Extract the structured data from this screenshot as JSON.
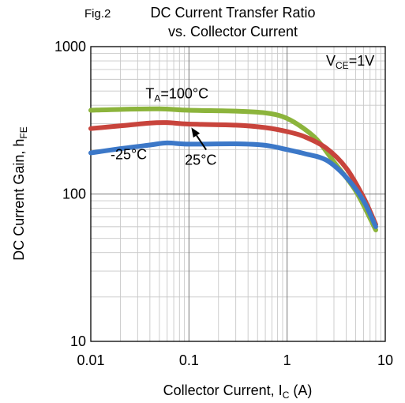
{
  "figure_label": "Fig.2",
  "chart_data": {
    "type": "line",
    "title_line1": "DC Current Transfer Ratio",
    "title_line2": "vs. Collector Current",
    "xlabel": {
      "main": "Collector Current, I",
      "sub": "C",
      "unit": " (A)"
    },
    "ylabel": {
      "main": "DC Current Gain, h",
      "sub": "FE"
    },
    "x_scale": "log",
    "y_scale": "log",
    "xlim": [
      0.01,
      10
    ],
    "ylim": [
      10,
      1000
    ],
    "grid": true,
    "x_ticks": [
      {
        "value": 0.01,
        "label": "0.01"
      },
      {
        "value": 0.1,
        "label": "0.1"
      },
      {
        "value": 1,
        "label": "1"
      },
      {
        "value": 10,
        "label": "10"
      }
    ],
    "y_ticks": [
      {
        "value": 10,
        "label": "10"
      },
      {
        "value": 100,
        "label": "100"
      },
      {
        "value": 1000,
        "label": "1000"
      }
    ],
    "condition": {
      "main": "V",
      "sub": "CE",
      "rest": "=1V"
    },
    "series": [
      {
        "label": "T_A=100°C",
        "color": "#8cb43c",
        "points": [
          [
            0.01,
            370
          ],
          [
            0.02,
            375
          ],
          [
            0.05,
            378
          ],
          [
            0.1,
            370
          ],
          [
            0.3,
            365
          ],
          [
            0.6,
            355
          ],
          [
            0.9,
            335
          ],
          [
            1.3,
            295
          ],
          [
            2.0,
            235
          ],
          [
            3.0,
            165
          ],
          [
            5.0,
            105
          ],
          [
            8.0,
            57
          ]
        ]
      },
      {
        "label": "25°C",
        "color": "#c8443c",
        "points": [
          [
            0.01,
            278
          ],
          [
            0.02,
            290
          ],
          [
            0.04,
            303
          ],
          [
            0.06,
            305
          ],
          [
            0.1,
            298
          ],
          [
            0.3,
            293
          ],
          [
            0.6,
            282
          ],
          [
            1.0,
            265
          ],
          [
            1.5,
            245
          ],
          [
            2.5,
            205
          ],
          [
            4.0,
            150
          ],
          [
            6.0,
            95
          ],
          [
            8.0,
            62
          ]
        ]
      },
      {
        "label": "-25°C",
        "color": "#3c78c8",
        "points": [
          [
            0.01,
            190
          ],
          [
            0.02,
            203
          ],
          [
            0.04,
            215
          ],
          [
            0.06,
            222
          ],
          [
            0.1,
            218
          ],
          [
            0.3,
            219
          ],
          [
            0.6,
            214
          ],
          [
            1.0,
            200
          ],
          [
            1.5,
            188
          ],
          [
            2.5,
            170
          ],
          [
            4.0,
            130
          ],
          [
            6.0,
            90
          ],
          [
            8.0,
            60
          ]
        ]
      }
    ],
    "annotations": [
      {
        "series": "T_A=100°C",
        "text_main": "T",
        "text_sub": "A",
        "text_rest": "=100°C",
        "at": [
          0.1,
          480
        ]
      },
      {
        "series": "25°C",
        "text": "25°C",
        "at": [
          0.12,
          170
        ],
        "arrow_to": [
          0.1,
          293
        ]
      },
      {
        "series": "-25°C",
        "text": "-25°C",
        "at": [
          0.023,
          185
        ]
      }
    ]
  }
}
